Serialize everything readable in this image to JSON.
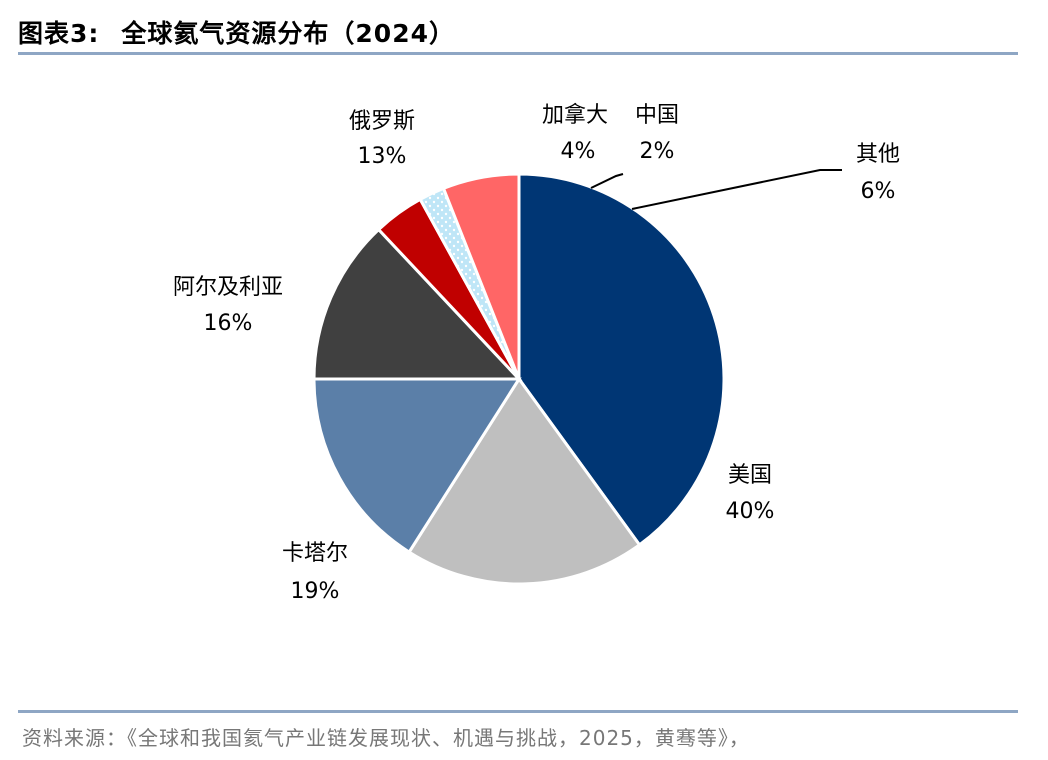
{
  "header": {
    "figure_no": "图表3:",
    "title": "全球氦气资源分布（2024）"
  },
  "source": "资料来源：《全球和我国氦气产业链发展现状、机遇与挑战，2025，黄骞等》，",
  "chart_data": {
    "type": "pie",
    "title": "全球氦气资源分布（2024）",
    "unit": "%",
    "slices": [
      {
        "name": "美国",
        "label": "40%",
        "value": 40,
        "color": "#003674"
      },
      {
        "name": "卡塔尔",
        "label": "19%",
        "value": 19,
        "color": "#bfbfbf"
      },
      {
        "name": "阿尔及利亚",
        "label": "16%",
        "value": 16,
        "color": "#5b7fa8"
      },
      {
        "name": "俄罗斯",
        "label": "13%",
        "value": 13,
        "color": "#404040"
      },
      {
        "name": "加拿大",
        "label": "4%",
        "value": 4,
        "color": "#c00000"
      },
      {
        "name": "中国",
        "label": "2%",
        "value": 2,
        "color": "#bfe6f7",
        "pattern": "dotted"
      },
      {
        "name": "其他",
        "label": "6%",
        "value": 6,
        "color": "#ff6666"
      }
    ]
  }
}
